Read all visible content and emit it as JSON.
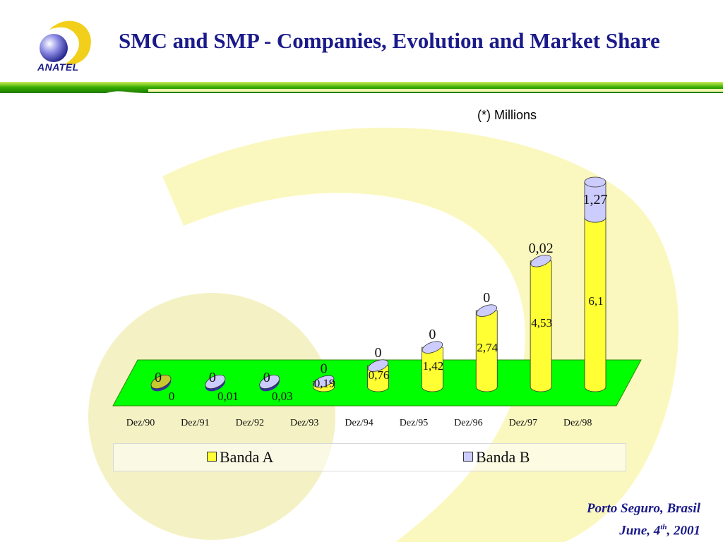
{
  "header": {
    "title": "SMC and SMP - Companies, Evolution and Market Share",
    "logo_text": "ANATEL"
  },
  "note": "(*) Millions",
  "footer": {
    "line1": "Porto Seguro, Brasil",
    "line2_prefix": "June, 4",
    "line2_sup": "th",
    "line2_suffix": ", 2001"
  },
  "colors": {
    "title": "#1a1a8a",
    "banda_a": "#ffff33",
    "banda_b": "#ccccff",
    "floor": "#00ff00",
    "accent_yellow": "#ffee33",
    "accent_green": "#33aa00"
  },
  "chart_data": {
    "type": "bar",
    "categories": [
      "Dez/90",
      "Dez/91",
      "Dez/92",
      "Dez/93",
      "Dez/94",
      "Dez/95",
      "Dez/96",
      "Dez/97",
      "Dez/98"
    ],
    "series": [
      {
        "name": "Banda A",
        "values": [
          0,
          0.01,
          0.03,
          0.19,
          0.76,
          1.42,
          2.74,
          4.53,
          6.1
        ],
        "labels": [
          "0",
          "0,01",
          "0,03",
          "0,19",
          "0,76",
          "1,42",
          "2,74",
          "4,53",
          "6,1"
        ]
      },
      {
        "name": "Banda B",
        "values": [
          0,
          0,
          0,
          0,
          0,
          0,
          0,
          0.02,
          1.27
        ],
        "labels": [
          "0",
          "0",
          "0",
          "0",
          "0",
          "0",
          "0",
          "0,02",
          "1,27"
        ]
      }
    ],
    "stacked": true,
    "legend": "bottom",
    "grid": false
  }
}
